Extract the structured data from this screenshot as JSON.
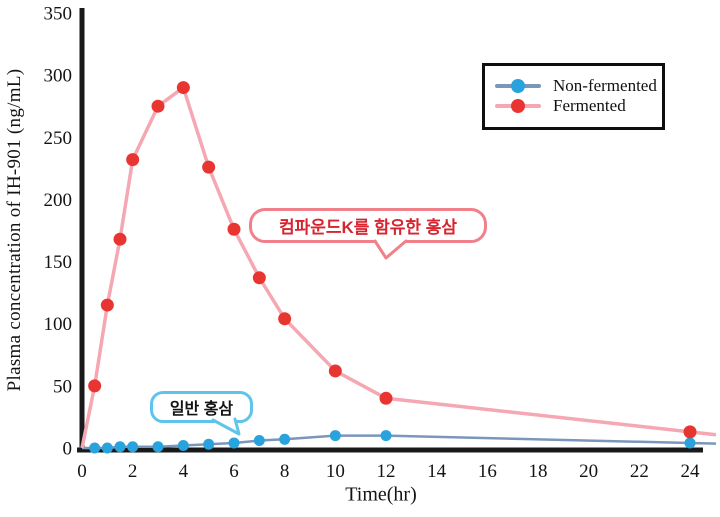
{
  "chart_data": {
    "type": "line",
    "title": "",
    "xlabel": "Time(hr)",
    "ylabel": "Plasma concentration of IH-901 (ng/mL)",
    "xlim": [
      0,
      24
    ],
    "ylim": [
      0,
      350
    ],
    "x_ticks": [
      0,
      2,
      4,
      6,
      8,
      10,
      12,
      14,
      16,
      18,
      20,
      22,
      24
    ],
    "y_ticks": [
      0,
      50,
      100,
      150,
      200,
      250,
      300,
      350
    ],
    "grid": false,
    "legend_position": "top-right",
    "axis_color": "#1a1a1a",
    "tick_color": "#141414",
    "x": [
      0,
      0.5,
      1,
      1.5,
      2,
      3,
      4,
      5,
      6,
      7,
      8,
      10,
      12,
      24
    ],
    "series": [
      {
        "name": "Non-fermented",
        "values": [
          0,
          0,
          0,
          1,
          1,
          1,
          2,
          3,
          4,
          6,
          7,
          10,
          10,
          4
        ],
        "line_color": "#7b96bb",
        "marker_color": "#29a3dd",
        "line_width": 2.5,
        "marker_radius": 5.5,
        "first_point_no_marker": true
      },
      {
        "name": "Fermented",
        "values": [
          0,
          50,
          115,
          168,
          232,
          275,
          290,
          226,
          176,
          137,
          104,
          62,
          40,
          13
        ],
        "line_color": "#f5a7b2",
        "marker_color": "#e93532",
        "line_width": 3.5,
        "marker_radius": 6.5,
        "first_point_no_marker": true
      }
    ],
    "annotations": [
      {
        "text": "컴파운드K를 함유한 홍삼",
        "text_color": "#d9232e",
        "border_color": "#f0808a",
        "points_to_series": "Fermented"
      },
      {
        "text": "일반 홍삼",
        "text_color": "#141414",
        "border_color": "#5fc4ec",
        "points_to_series": "Non-fermented"
      }
    ]
  }
}
